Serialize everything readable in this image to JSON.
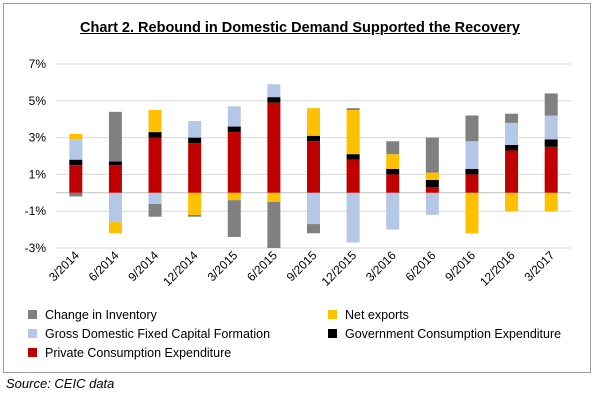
{
  "chart_data": {
    "type": "bar",
    "stacked": true,
    "title": "Chart 2. Rebound in Domestic Demand Supported the Recovery",
    "xlabel": "",
    "ylabel": "",
    "ylim": [
      -3,
      7
    ],
    "yticks": [
      -3,
      -1,
      1,
      3,
      5,
      7
    ],
    "ytick_labels": [
      "-3%",
      "-1%",
      "1%",
      "3%",
      "5%",
      "7%"
    ],
    "grid": true,
    "legend_position": "bottom",
    "categories": [
      "3/2014",
      "6/2014",
      "9/2014",
      "12/2014",
      "3/2015",
      "6/2015",
      "9/2015",
      "12/2015",
      "3/2016",
      "6/2016",
      "9/2016",
      "12/2016",
      "3/2017"
    ],
    "series": [
      {
        "name": "Private Consumption Expenditure",
        "color": "#c00000",
        "values": [
          1.5,
          1.5,
          3.0,
          2.7,
          3.3,
          4.9,
          2.8,
          1.8,
          1.0,
          0.3,
          1.0,
          2.3,
          2.5
        ]
      },
      {
        "name": "Government Consumption Expenditure",
        "color": "#000000",
        "values": [
          0.3,
          0.2,
          0.3,
          0.3,
          0.3,
          0.3,
          0.3,
          0.3,
          0.3,
          0.4,
          0.3,
          0.3,
          0.4
        ]
      },
      {
        "name": "Gross Domestic Fixed Capital Formation",
        "color": "#b4c7e7",
        "values": [
          1.1,
          -1.6,
          -0.6,
          0.9,
          1.1,
          0.7,
          -1.7,
          -2.7,
          -2.0,
          -1.2,
          1.5,
          1.2,
          1.3
        ]
      },
      {
        "name": "Net exports",
        "color": "#ffc000",
        "values": [
          0.3,
          -0.6,
          1.2,
          -1.2,
          -0.4,
          -0.5,
          1.5,
          2.4,
          0.8,
          0.4,
          -2.2,
          -1.0,
          -1.0
        ]
      },
      {
        "name": "Change in Inventory",
        "color": "#808080",
        "values": [
          -0.2,
          2.7,
          -0.7,
          -0.1,
          -2.0,
          -2.5,
          -0.5,
          0.1,
          0.7,
          1.9,
          1.4,
          0.5,
          1.2
        ]
      }
    ],
    "legend_order": [
      "Change in Inventory",
      "Net exports",
      "Gross Domestic Fixed Capital Formation",
      "Government Consumption Expenditure",
      "Private Consumption Expenditure"
    ]
  },
  "source": "Source: CEIC data"
}
